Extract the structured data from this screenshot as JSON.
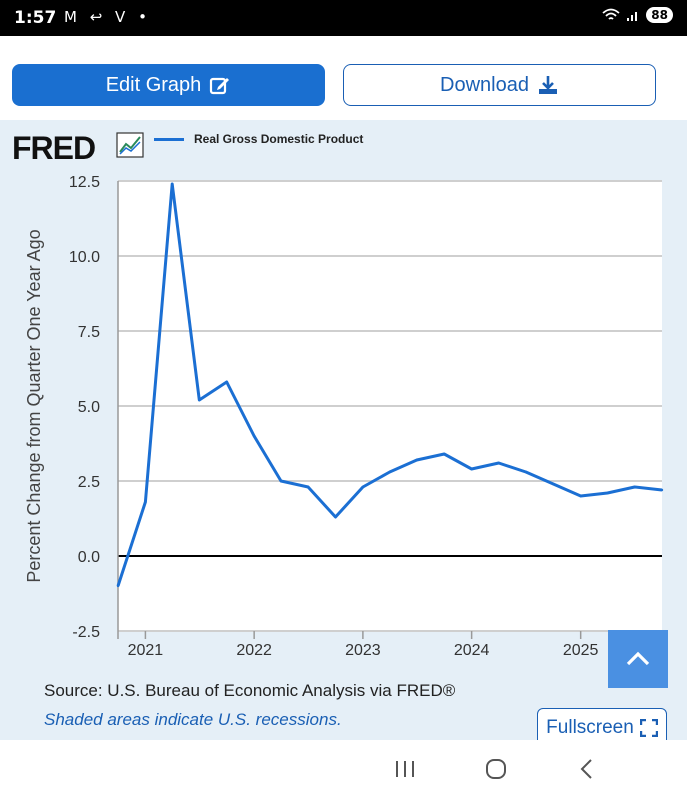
{
  "status_bar": {
    "time": "1:57",
    "left_icons": [
      "gmail-icon",
      "missed-call-icon",
      "v-app-icon",
      "dot-icon"
    ],
    "left_glyphs": "M ↩ V •",
    "right_icons": [
      "wifi-icon",
      "signal-icon"
    ],
    "battery": "88"
  },
  "toolbar": {
    "edit_label": "Edit Graph",
    "download_label": "Download"
  },
  "graph": {
    "logo": "FRED",
    "legend_series": "Real Gross Domestic Product",
    "source": "Source: U.S. Bureau of Economic Analysis via FRED®",
    "recession_note": "Shaded areas indicate U.S. recessions.",
    "fullscreen_label": "Fullscreen"
  },
  "colors": {
    "accent": "#1a6fd0",
    "series": "#1b6fd3",
    "panel_bg": "#e5eff7"
  },
  "chart_data": {
    "type": "line",
    "ylabel": "Percent Change from Quarter One Year Ago",
    "ylim": [
      -2.5,
      12.5
    ],
    "y_ticks": [
      "12.5",
      "10.0",
      "7.5",
      "5.0",
      "2.5",
      "0.0",
      "-2.5"
    ],
    "x_ticks": [
      "2021",
      "2022",
      "2023",
      "2024",
      "2025"
    ],
    "series": [
      {
        "name": "Real Gross Domestic Product",
        "x": [
          "2020-10-01",
          "2021-01-01",
          "2021-04-01",
          "2021-07-01",
          "2021-10-01",
          "2022-01-01",
          "2022-04-01",
          "2022-07-01",
          "2022-10-01",
          "2023-01-01",
          "2023-04-01",
          "2023-07-01",
          "2023-10-01",
          "2024-01-01",
          "2024-04-01",
          "2024-07-01",
          "2024-10-01",
          "2025-01-01",
          "2025-04-01",
          "2025-07-01",
          "2025-10-01"
        ],
        "values": [
          -1.0,
          1.8,
          12.4,
          5.2,
          5.8,
          4.0,
          2.5,
          2.3,
          1.3,
          2.3,
          2.8,
          3.2,
          3.4,
          2.9,
          3.1,
          2.8,
          2.4,
          2.0,
          2.1,
          2.3,
          2.2
        ]
      }
    ],
    "grid": true
  }
}
